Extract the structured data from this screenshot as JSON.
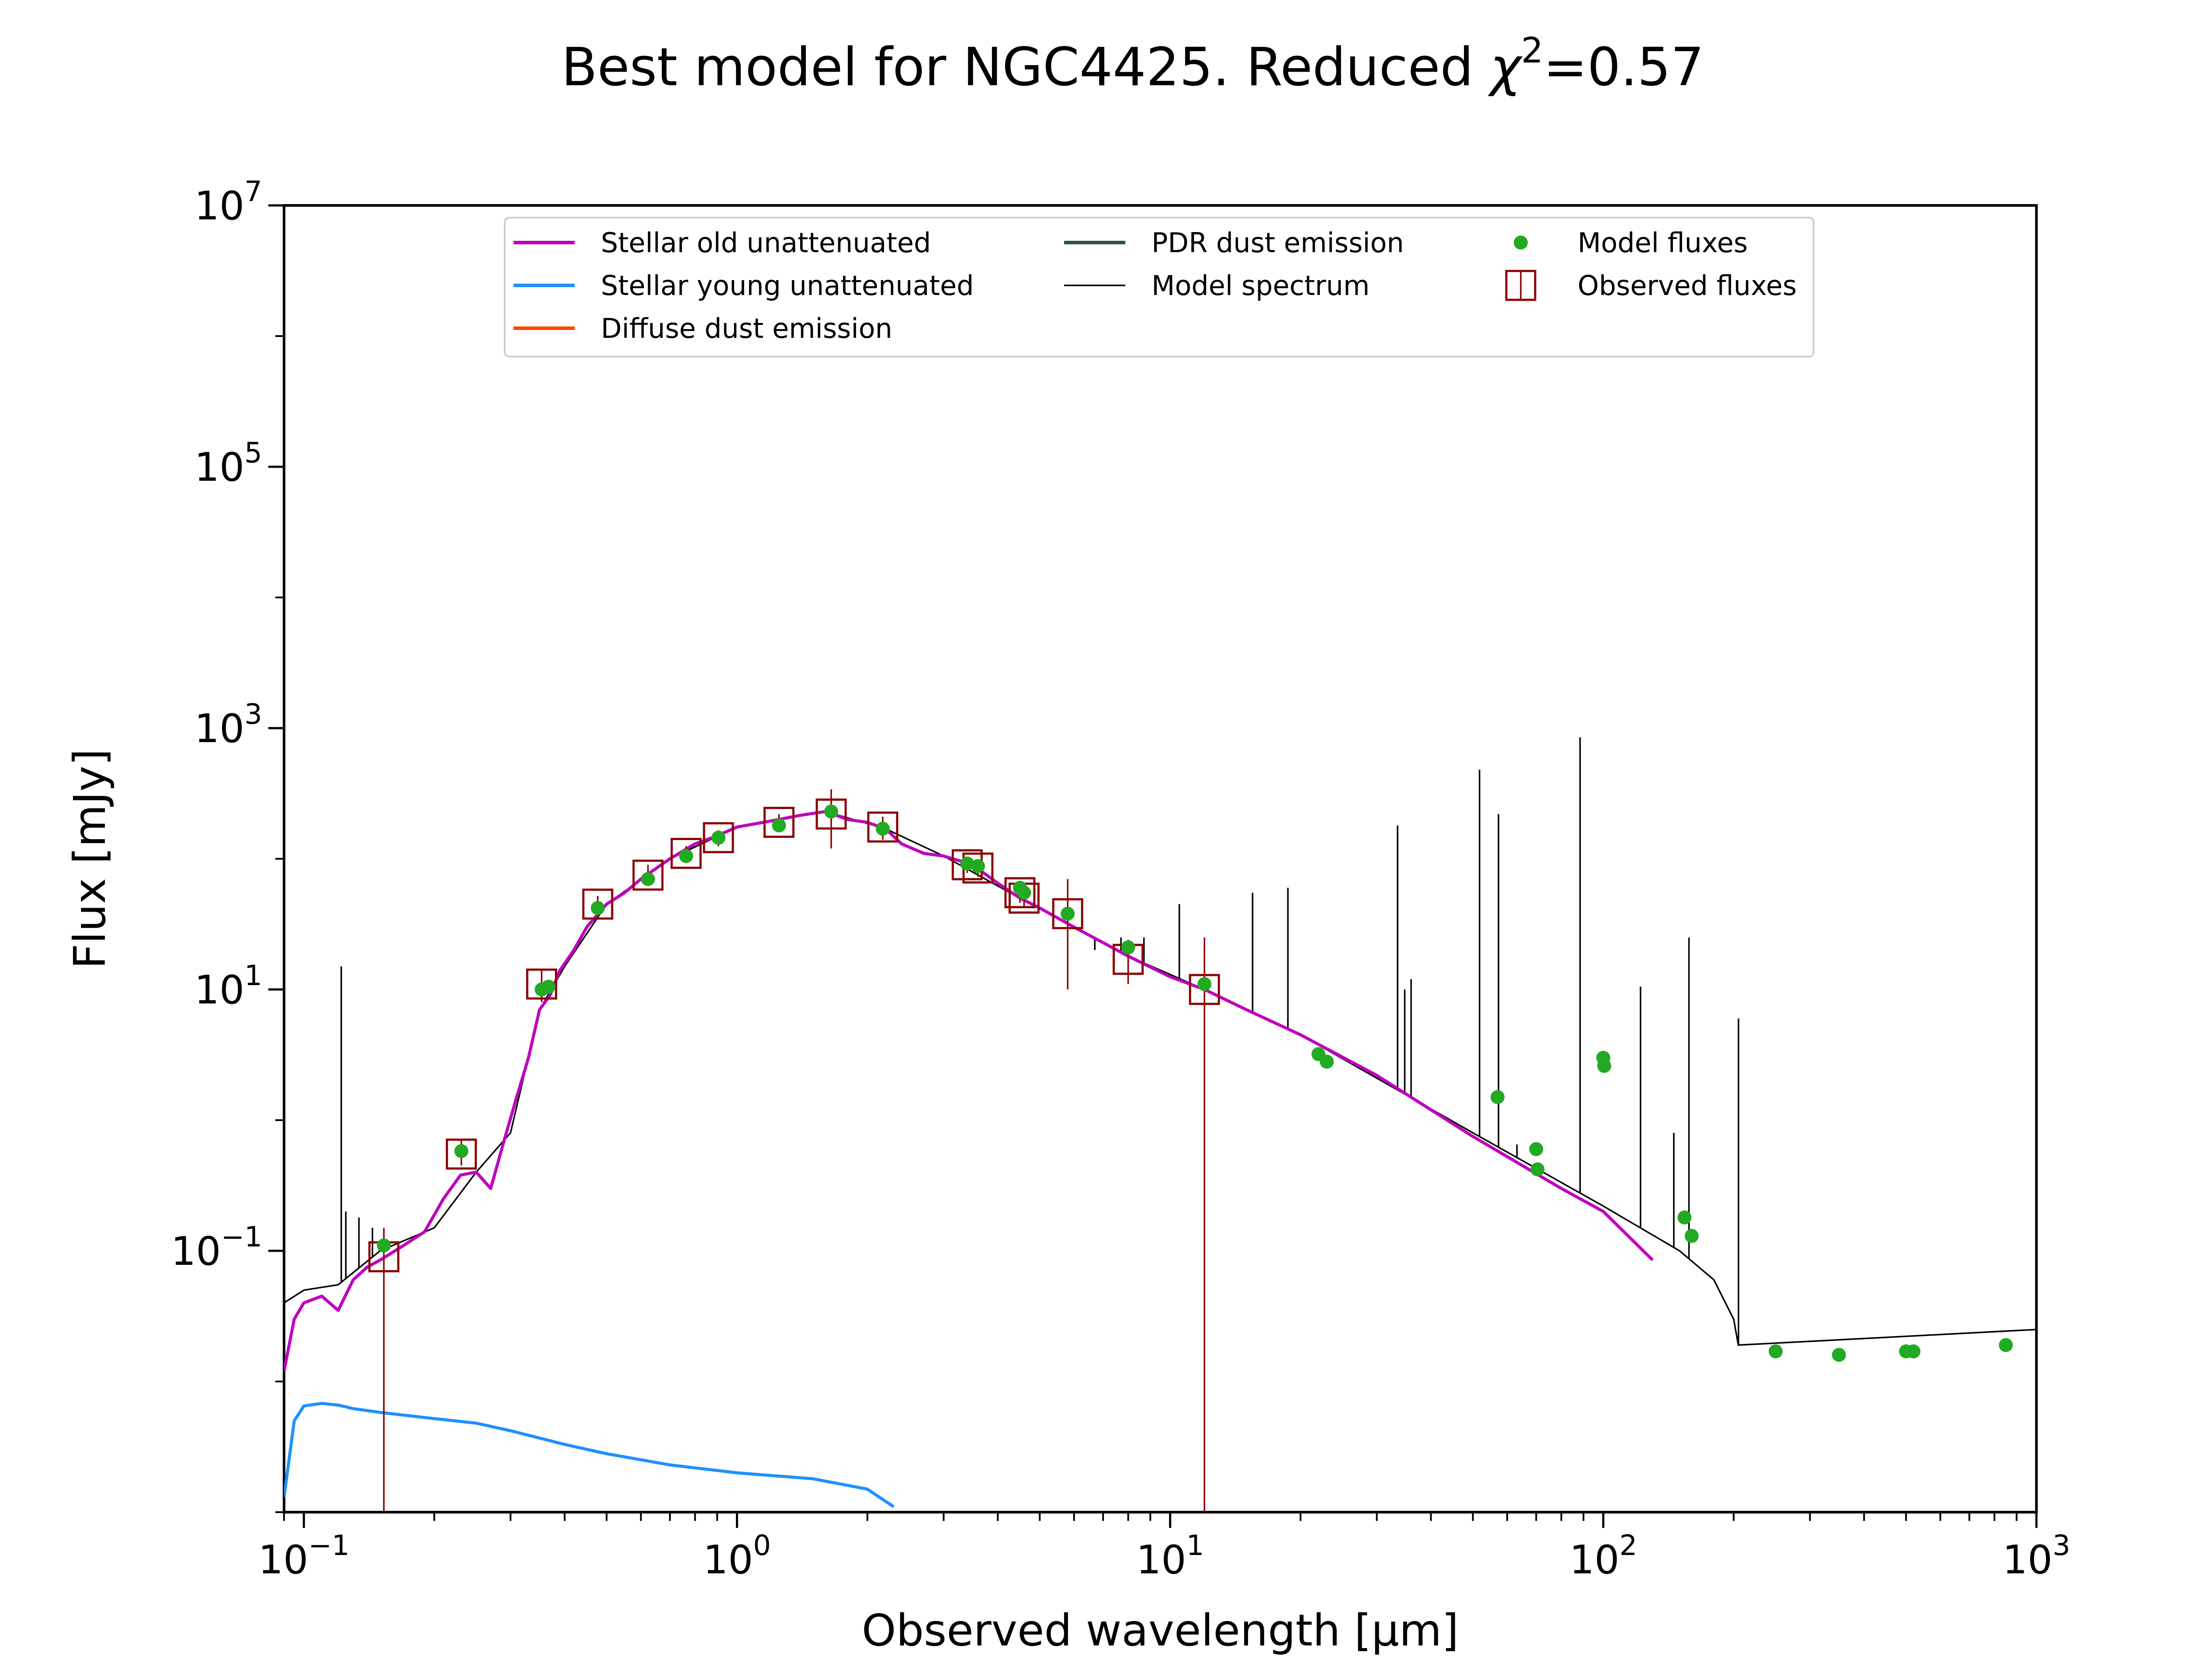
{
  "chart_data": {
    "type": "scatter",
    "title": {
      "prefix": "Best model for NGC4425. Reduced ",
      "chi": "χ",
      "sup": "2",
      "suffix": "=0.57"
    },
    "xlabel": "Observed wavelength [μm]",
    "ylabel": "Flux [mJy]",
    "x_scale": "log",
    "y_scale": "log",
    "xlim": [
      0.09,
      1000
    ],
    "ylim": [
      0.001,
      10000000
    ],
    "grid": false,
    "legend_placement": "upper center",
    "x_ticks": [
      {
        "value": 0.1,
        "base": "10",
        "exp": "−1"
      },
      {
        "value": 1,
        "base": "10",
        "exp": "0"
      },
      {
        "value": 10,
        "base": "10",
        "exp": "1"
      },
      {
        "value": 100,
        "base": "10",
        "exp": "2"
      },
      {
        "value": 1000,
        "base": "10",
        "exp": "3"
      }
    ],
    "y_ticks": [
      {
        "value": 0.1,
        "base": "10",
        "exp": "−1"
      },
      {
        "value": 10,
        "base": "10",
        "exp": "1"
      },
      {
        "value": 1000,
        "base": "10",
        "exp": "3"
      },
      {
        "value": 100000,
        "base": "10",
        "exp": "5"
      },
      {
        "value": 10000000,
        "base": "10",
        "exp": "7"
      }
    ],
    "legend": [
      {
        "label": "Stellar old unattenuated",
        "kind": "line",
        "color": "#bf00bf"
      },
      {
        "label": "Stellar young unattenuated",
        "kind": "line",
        "color": "#1e90ff"
      },
      {
        "label": "Diffuse dust emission",
        "kind": "line",
        "color": "#ff4500"
      },
      {
        "label": "PDR dust emission",
        "kind": "line",
        "color": "#2f4f4f"
      },
      {
        "label": "Model spectrum",
        "kind": "thin-line",
        "color": "#000000"
      },
      {
        "label": "Model fluxes",
        "kind": "dot",
        "color": "#22aa22"
      },
      {
        "label": "Observed fluxes",
        "kind": "square",
        "color": "#8b0000"
      }
    ],
    "series": [
      {
        "name": "Stellar old unattenuated",
        "color": "#bf00bf",
        "points": [
          [
            0.09,
            0.012
          ],
          [
            0.095,
            0.03
          ],
          [
            0.1,
            0.04
          ],
          [
            0.11,
            0.045
          ],
          [
            0.12,
            0.035
          ],
          [
            0.13,
            0.06
          ],
          [
            0.14,
            0.075
          ],
          [
            0.15,
            0.085
          ],
          [
            0.17,
            0.11
          ],
          [
            0.19,
            0.14
          ],
          [
            0.21,
            0.25
          ],
          [
            0.23,
            0.38
          ],
          [
            0.25,
            0.4
          ],
          [
            0.27,
            0.3
          ],
          [
            0.29,
            0.7
          ],
          [
            0.31,
            1.5
          ],
          [
            0.33,
            3.0
          ],
          [
            0.35,
            7.0
          ],
          [
            0.37,
            9.0
          ],
          [
            0.39,
            14.0
          ],
          [
            0.42,
            20.0
          ],
          [
            0.45,
            30.0
          ],
          [
            0.5,
            45.0
          ],
          [
            0.55,
            55.0
          ],
          [
            0.6,
            70.0
          ],
          [
            0.7,
            100.0
          ],
          [
            0.8,
            130.0
          ],
          [
            0.9,
            150.0
          ],
          [
            1.0,
            175.0
          ],
          [
            1.2,
            195.0
          ],
          [
            1.4,
            215.0
          ],
          [
            1.6,
            230.0
          ],
          [
            1.8,
            200.0
          ],
          [
            2.0,
            190.0
          ],
          [
            2.2,
            170.0
          ],
          [
            2.4,
            130.0
          ],
          [
            2.7,
            110.0
          ],
          [
            3.0,
            105.0
          ],
          [
            3.5,
            90.0
          ],
          [
            4.0,
            65.0
          ],
          [
            4.5,
            50.0
          ],
          [
            5.0,
            42.0
          ],
          [
            6.0,
            30.0
          ],
          [
            8.0,
            18.0
          ],
          [
            10.0,
            12.5
          ],
          [
            12.0,
            10.0
          ],
          [
            15.0,
            7.0
          ],
          [
            20.0,
            4.5
          ],
          [
            30.0,
            2.2
          ],
          [
            50.0,
            0.75
          ],
          [
            80.0,
            0.3
          ],
          [
            100.0,
            0.2
          ],
          [
            130.0,
            0.085
          ]
        ]
      },
      {
        "name": "Stellar young unattenuated",
        "color": "#1e90ff",
        "points": [
          [
            0.09,
            0.0013
          ],
          [
            0.095,
            0.005
          ],
          [
            0.1,
            0.0065
          ],
          [
            0.11,
            0.0068
          ],
          [
            0.12,
            0.0066
          ],
          [
            0.13,
            0.0062
          ],
          [
            0.15,
            0.0058
          ],
          [
            0.2,
            0.0052
          ],
          [
            0.25,
            0.0048
          ],
          [
            0.3,
            0.0042
          ],
          [
            0.4,
            0.0033
          ],
          [
            0.5,
            0.0028
          ],
          [
            0.7,
            0.0023
          ],
          [
            1.0,
            0.002
          ],
          [
            1.5,
            0.0018
          ],
          [
            2.0,
            0.0015
          ],
          [
            2.3,
            0.0011
          ]
        ]
      },
      {
        "name": "Model spectrum",
        "color": "#000000",
        "points": [
          [
            0.09,
            0.04
          ],
          [
            0.1,
            0.05
          ],
          [
            0.12,
            0.055
          ],
          [
            0.15,
            0.1
          ],
          [
            0.2,
            0.15
          ],
          [
            0.25,
            0.4
          ],
          [
            0.3,
            0.8
          ],
          [
            0.35,
            7.0
          ],
          [
            0.4,
            15.0
          ],
          [
            0.5,
            45.0
          ],
          [
            0.7,
            100.0
          ],
          [
            1.0,
            175.0
          ],
          [
            1.6,
            230.0
          ],
          [
            2.2,
            170.0
          ],
          [
            3.0,
            105.0
          ],
          [
            4.5,
            50.0
          ],
          [
            6.0,
            30.0
          ],
          [
            8.0,
            18.0
          ],
          [
            12.0,
            10.0
          ],
          [
            20.0,
            4.5
          ],
          [
            50.0,
            0.8
          ],
          [
            100.0,
            0.22
          ],
          [
            150.0,
            0.1
          ],
          [
            180.0,
            0.06
          ],
          [
            200.0,
            0.03
          ],
          [
            205.0,
            0.019
          ],
          [
            1000.0,
            0.025
          ]
        ],
        "spikes": [
          [
            0.122,
            15.0
          ],
          [
            0.125,
            0.2
          ],
          [
            0.134,
            0.18
          ],
          [
            0.144,
            0.15
          ],
          [
            6.7,
            20.0
          ],
          [
            7.7,
            25.0
          ],
          [
            8.7,
            25.0
          ],
          [
            10.5,
            45.0
          ],
          [
            15.5,
            55.0
          ],
          [
            18.7,
            60.0
          ],
          [
            33.5,
            180.0
          ],
          [
            34.8,
            10.0
          ],
          [
            36.0,
            12.0
          ],
          [
            51.8,
            480.0
          ],
          [
            57.3,
            220.0
          ],
          [
            63.2,
            0.65
          ],
          [
            88.4,
            850.0
          ],
          [
            121.9,
            10.5
          ],
          [
            145.5,
            0.8
          ],
          [
            157.7,
            25.0
          ],
          [
            205.2,
            6.0
          ]
        ]
      },
      {
        "name": "Model fluxes",
        "color": "#22aa22",
        "points": [
          [
            0.153,
            0.11
          ],
          [
            0.231,
            0.58
          ],
          [
            0.354,
            10.0
          ],
          [
            0.367,
            10.5
          ],
          [
            0.477,
            42.0
          ],
          [
            0.623,
            70.0
          ],
          [
            0.763,
            105.0
          ],
          [
            0.906,
            145.0
          ],
          [
            1.25,
            180.0
          ],
          [
            1.65,
            230.0
          ],
          [
            2.17,
            170.0
          ],
          [
            3.4,
            92.0
          ],
          [
            3.6,
            88.0
          ],
          [
            4.5,
            60.0
          ],
          [
            4.6,
            55.0
          ],
          [
            5.8,
            38.0
          ],
          [
            8.0,
            21.0
          ],
          [
            12.0,
            11.0
          ],
          [
            22.0,
            3.2
          ],
          [
            23.0,
            2.8
          ],
          [
            57.0,
            1.5
          ],
          [
            70.0,
            0.6
          ],
          [
            70.5,
            0.42
          ],
          [
            100.0,
            3.0
          ],
          [
            100.5,
            2.6
          ],
          [
            154.0,
            0.18
          ],
          [
            160.0,
            0.13
          ],
          [
            250.0,
            0.017
          ],
          [
            350.0,
            0.016
          ],
          [
            500.0,
            0.017
          ],
          [
            520.0,
            0.017
          ],
          [
            850.0,
            0.019
          ]
        ]
      },
      {
        "name": "Observed fluxes",
        "color": "#8b0000",
        "points": [
          {
            "x": 0.153,
            "y": 0.09,
            "ylo": 0.001,
            "yhi": 0.15
          },
          {
            "x": 0.231,
            "y": 0.55,
            "ylo": 0.45,
            "yhi": 0.7
          },
          {
            "x": 0.354,
            "y": 11.0,
            "ylo": 8.0,
            "yhi": 14.0
          },
          {
            "x": 0.477,
            "y": 45.0,
            "ylo": 38.0,
            "yhi": 52.0
          },
          {
            "x": 0.623,
            "y": 75.0,
            "ylo": 63.0,
            "yhi": 90.0
          },
          {
            "x": 0.763,
            "y": 110.0,
            "ylo": 95.0,
            "yhi": 125.0
          },
          {
            "x": 0.906,
            "y": 145.0,
            "ylo": 125.0,
            "yhi": 165.0
          },
          {
            "x": 1.25,
            "y": 190.0,
            "ylo": 160.0,
            "yhi": 220.0
          },
          {
            "x": 1.65,
            "y": 220.0,
            "ylo": 120.0,
            "yhi": 340.0
          },
          {
            "x": 2.17,
            "y": 175.0,
            "ylo": 140.0,
            "yhi": 210.0
          },
          {
            "x": 3.4,
            "y": 90.0,
            "ylo": 78.0,
            "yhi": 104.0
          },
          {
            "x": 3.6,
            "y": 85.0,
            "ylo": 73.0,
            "yhi": 98.0
          },
          {
            "x": 4.5,
            "y": 55.0,
            "ylo": 46.0,
            "yhi": 65.0
          },
          {
            "x": 4.6,
            "y": 50.0,
            "ylo": 42.0,
            "yhi": 58.0
          },
          {
            "x": 5.8,
            "y": 38.0,
            "ylo": 10.0,
            "yhi": 70.0
          },
          {
            "x": 8.0,
            "y": 17.0,
            "ylo": 11.0,
            "yhi": 24.0
          },
          {
            "x": 12.0,
            "y": 10.0,
            "ylo": 0.001,
            "yhi": 25.0
          }
        ]
      }
    ]
  }
}
